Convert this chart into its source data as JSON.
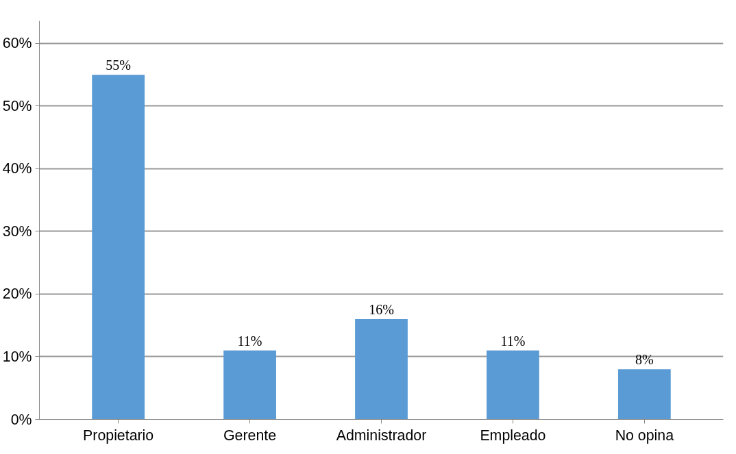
{
  "chart_data": {
    "type": "bar",
    "categories": [
      "Propietario",
      "Gerente",
      "Administrador",
      "Empleado",
      "No opina"
    ],
    "values": [
      55,
      11,
      16,
      11,
      8
    ],
    "value_labels": [
      "55%",
      "11%",
      "16%",
      "11%",
      "8%"
    ],
    "color": "#5b9bd5",
    "ylim": [
      0,
      60
    ],
    "yticks": [
      {
        "value": 0,
        "label": "0%"
      },
      {
        "value": 10,
        "label": "10%"
      },
      {
        "value": 20,
        "label": "20%"
      },
      {
        "value": 30,
        "label": "30%"
      },
      {
        "value": 40,
        "label": "40%"
      },
      {
        "value": 50,
        "label": "50%"
      },
      {
        "value": 60,
        "label": "60%"
      }
    ],
    "grid": "y"
  }
}
